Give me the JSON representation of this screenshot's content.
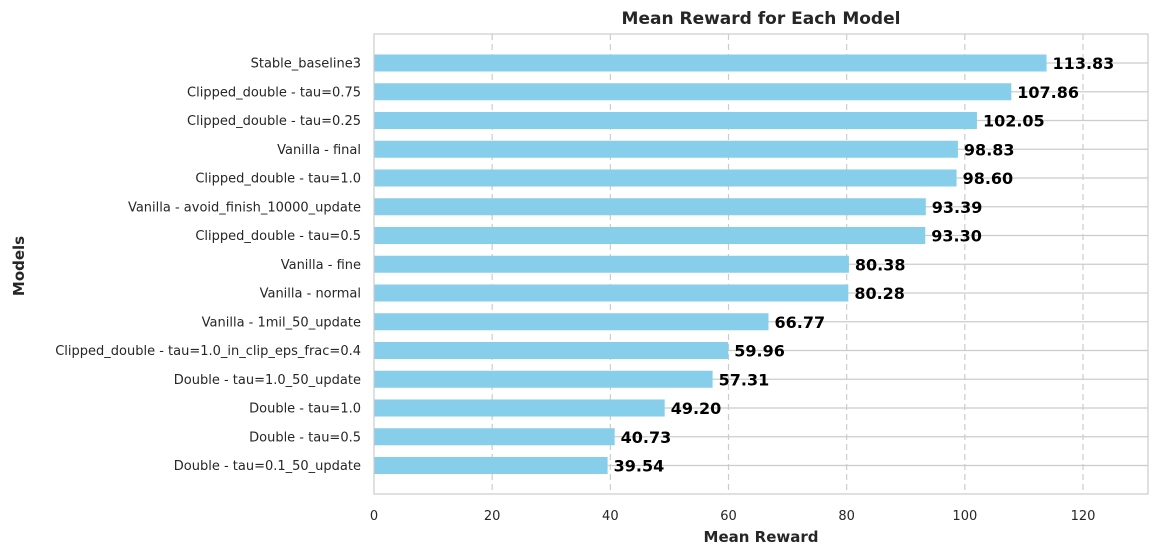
{
  "chart_data": {
    "type": "bar",
    "orientation": "horizontal",
    "title": "Mean Reward for Each Model",
    "xlabel": "Mean Reward",
    "ylabel": "Models",
    "xlim": [
      0,
      131
    ],
    "xticks": [
      0,
      20,
      40,
      60,
      80,
      100,
      120
    ],
    "grid": true,
    "bar_color": "#87CEEB",
    "categories": [
      "Stable_baseline3",
      "Clipped_double - tau=0.75",
      "Clipped_double - tau=0.25",
      "Vanilla - final",
      "Clipped_double - tau=1.0",
      "Vanilla - avoid_finish_10000_update",
      "Clipped_double - tau=0.5",
      "Vanilla - fine",
      "Vanilla - normal",
      "Vanilla - 1mil_50_update",
      "Clipped_double - tau=1.0_in_clip_eps_frac=0.4",
      "Double - tau=1.0_50_update",
      "Double - tau=1.0",
      "Double - tau=0.5",
      "Double - tau=0.1_50_update"
    ],
    "values": [
      113.83,
      107.86,
      102.05,
      98.83,
      98.6,
      93.39,
      93.3,
      80.38,
      80.28,
      66.77,
      59.96,
      57.31,
      49.2,
      40.73,
      39.54
    ],
    "value_labels": [
      "113.83",
      "107.86",
      "102.05",
      "98.83",
      "98.60",
      "93.39",
      "93.30",
      "80.38",
      "80.28",
      "66.77",
      "59.96",
      "57.31",
      "49.20",
      "40.73",
      "39.54"
    ]
  }
}
